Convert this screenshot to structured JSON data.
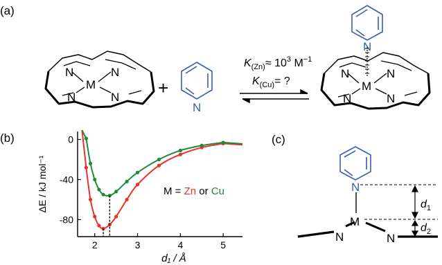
{
  "panels": {
    "a": "(a)",
    "b": "(b)",
    "c": "(c)"
  },
  "reaction": {
    "plus": "+",
    "metal": "M",
    "nitrogen": "N",
    "k_zn_K": "K",
    "k_zn_sub": "(Zn)",
    "k_zn_value": "≈ 10",
    "k_zn_exp": "3",
    "k_zn_unit": " M",
    "k_zn_unit_exp": "−1",
    "k_cu_K": "K",
    "k_cu_sub": "(Cu)",
    "k_cu_value": "= ?"
  },
  "legend": {
    "prefix": "M = ",
    "zn": "Zn",
    "sep": " or ",
    "cu": "Cu"
  },
  "geometry_labels": {
    "metal": "M",
    "nitrogen": "N",
    "d1": "d",
    "d1_sub": "1",
    "d2": "d",
    "d2_sub": "2"
  },
  "colors": {
    "zn": "#e8312a",
    "cu": "#1e8a3a",
    "pyridine": "#3a5bb5"
  },
  "chart_data": {
    "type": "line",
    "ylabel": "ΔE / kJ mol⁻¹",
    "xlabel": "d₁ / Å",
    "x_ticks": [
      "2",
      "3",
      "4",
      "5"
    ],
    "y_ticks": [
      "0",
      "-40",
      "-80"
    ],
    "xlim": [
      1.6,
      5.45
    ],
    "ylim": [
      -97,
      8
    ],
    "series": [
      {
        "name": "Zn",
        "color": "#e8312a",
        "x": [
          1.8,
          1.9,
          2.0,
          2.1,
          2.2,
          2.35,
          2.5,
          2.75,
          3.0,
          3.5,
          4.0,
          4.5,
          5.0
        ],
        "y": [
          -28,
          -60,
          -77,
          -86,
          -89,
          -85,
          -77,
          -60,
          -45,
          -26,
          -15,
          -8,
          -4
        ]
      },
      {
        "name": "Cu",
        "color": "#1e8a3a",
        "x": [
          1.8,
          1.9,
          2.0,
          2.1,
          2.2,
          2.35,
          2.5,
          2.75,
          3.0,
          3.5,
          4.0,
          4.5,
          5.0
        ],
        "y": [
          1,
          -24,
          -40,
          -50,
          -55,
          -56,
          -52,
          -42,
          -33,
          -20,
          -11,
          -6,
          -3
        ]
      }
    ],
    "minima_x": [
      2.2,
      2.35
    ]
  }
}
